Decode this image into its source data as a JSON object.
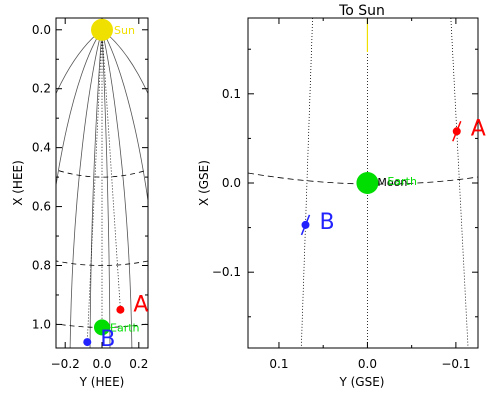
{
  "colors": {
    "sun": "#f0e000",
    "earth": "#00dd00",
    "stereo_a": "#ff0000",
    "stereo_b": "#2222ff",
    "axes": "#000000",
    "spiral": "#555555"
  },
  "chart_data": [
    {
      "id": "hee-panel",
      "type": "scatter",
      "title": "",
      "xlabel": "Y (HEE)",
      "ylabel": "X (HEE)",
      "xlim": [
        -0.25,
        0.25
      ],
      "ylim": [
        -0.04,
        1.08
      ],
      "y_inverted": true,
      "x_ticks": [
        {
          "value": -0.2,
          "label": "−0.2"
        },
        {
          "value": 0.0,
          "label": "0.0"
        },
        {
          "value": 0.2,
          "label": "0.2"
        }
      ],
      "y_ticks": [
        {
          "value": 0.0,
          "label": "0.0"
        },
        {
          "value": 0.2,
          "label": "0.2"
        },
        {
          "value": 0.4,
          "label": "0.4"
        },
        {
          "value": 0.6,
          "label": "0.6"
        },
        {
          "value": 0.8,
          "label": "0.8"
        },
        {
          "value": 1.0,
          "label": "1.0"
        }
      ],
      "bodies": [
        {
          "key": "sun",
          "label": "Sun",
          "x": 0.0,
          "y": 0.0
        },
        {
          "key": "earth",
          "label": "Earth",
          "x": 0.0,
          "y": 1.01
        },
        {
          "key": "stereo_a",
          "label": "A",
          "x": 0.1,
          "y": 0.95
        },
        {
          "key": "stereo_b",
          "label": "B",
          "x": -0.08,
          "y": 1.06
        }
      ]
    },
    {
      "id": "gse-panel",
      "type": "scatter",
      "title": "To Sun",
      "xlabel": "Y (GSE)",
      "ylabel": "X (GSE)",
      "xlim": [
        0.135,
        -0.125
      ],
      "ylim": [
        -0.185,
        0.185
      ],
      "x_ticks": [
        {
          "value": 0.1,
          "label": "0.1"
        },
        {
          "value": 0.0,
          "label": "0.0"
        },
        {
          "value": -0.1,
          "label": "−0.1"
        }
      ],
      "y_ticks": [
        {
          "value": 0.1,
          "label": "0.1"
        },
        {
          "value": 0.0,
          "label": "0.0"
        },
        {
          "value": -0.1,
          "label": "−0.1"
        }
      ],
      "bodies": [
        {
          "key": "earth",
          "label": "Earth",
          "label2": "Moon",
          "x": 0.0,
          "y": 0.0
        },
        {
          "key": "stereo_a",
          "label": "A",
          "x": -0.101,
          "y": 0.058
        },
        {
          "key": "stereo_b",
          "label": "B",
          "x": 0.07,
          "y": -0.047
        }
      ]
    }
  ]
}
